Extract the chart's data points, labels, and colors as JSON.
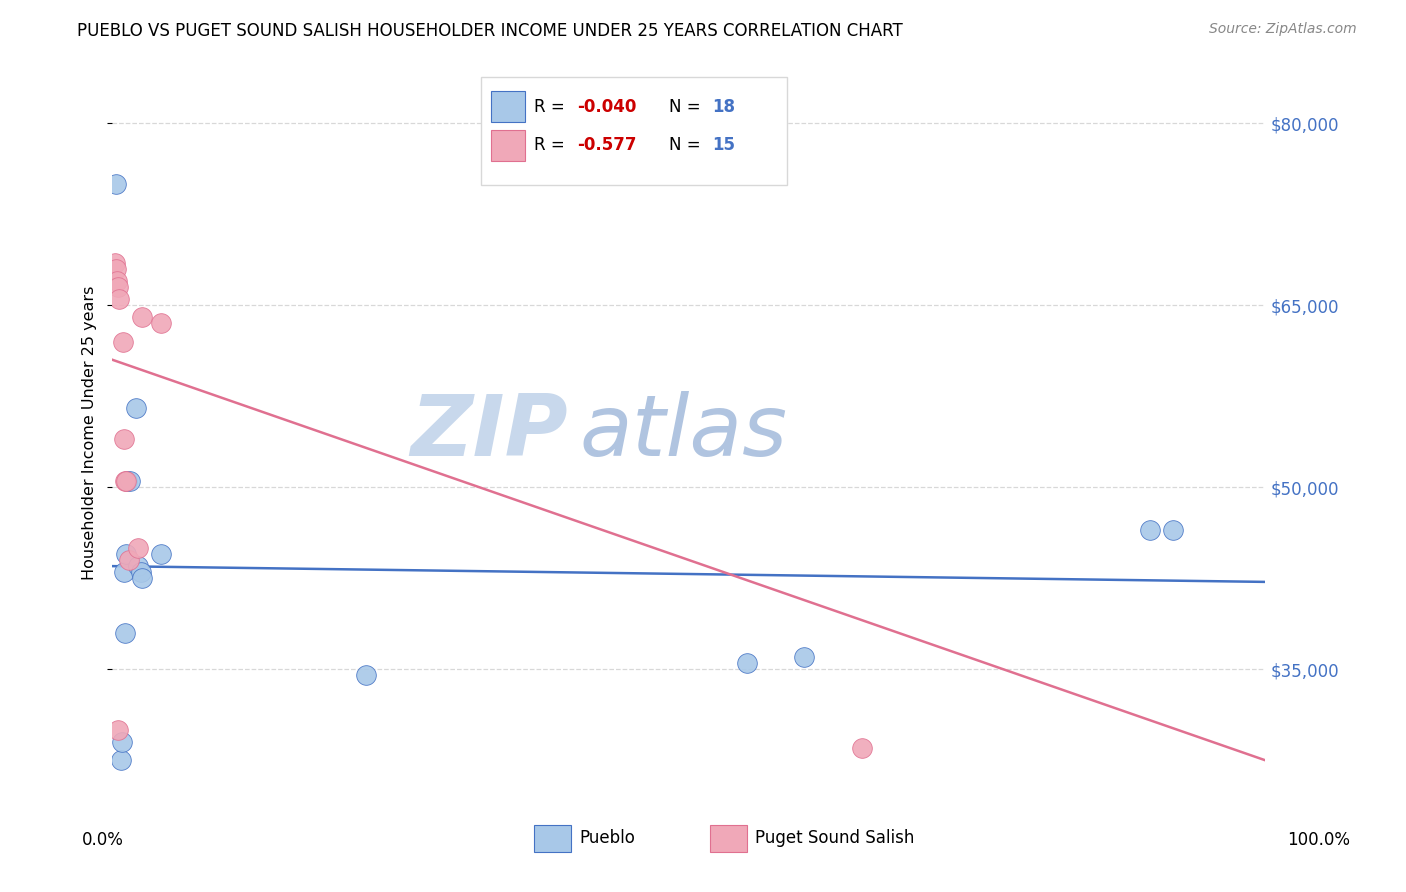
{
  "title": "PUEBLO VS PUGET SOUND SALISH HOUSEHOLDER INCOME UNDER 25 YEARS CORRELATION CHART",
  "source": "Source: ZipAtlas.com",
  "ylabel": "Householder Income Under 25 years",
  "pueblo_color": "#a8c8e8",
  "puget_color": "#f0a8b8",
  "pueblo_line_color": "#4472c4",
  "puget_line_color": "#e07090",
  "r_value_color": "#cc0000",
  "n_value_color": "#4472c4",
  "watermark_zip_color": "#c8d8ec",
  "watermark_atlas_color": "#b0c4e0",
  "background_color": "#ffffff",
  "grid_color": "#d8d8d8",
  "xlim": [
    0,
    1.0
  ],
  "ylim": [
    24000,
    85000
  ],
  "ytick_positions": [
    35000,
    50000,
    65000,
    80000
  ],
  "ytick_labels": [
    "$35,000",
    "$50,000",
    "$65,000",
    "$80,000"
  ],
  "pueblo_x": [
    0.003,
    0.007,
    0.008,
    0.01,
    0.011,
    0.012,
    0.013,
    0.015,
    0.02,
    0.022,
    0.025,
    0.026,
    0.042,
    0.55,
    0.6,
    0.9,
    0.92,
    0.22
  ],
  "pueblo_y": [
    75000,
    27500,
    29000,
    43000,
    38000,
    44500,
    50500,
    50500,
    56500,
    43500,
    43000,
    42500,
    44500,
    35500,
    36000,
    46500,
    46500,
    34500
  ],
  "puget_x": [
    0.002,
    0.003,
    0.004,
    0.005,
    0.006,
    0.009,
    0.01,
    0.011,
    0.012,
    0.014,
    0.022,
    0.026,
    0.042,
    0.65,
    0.005
  ],
  "puget_y": [
    68500,
    68000,
    67000,
    66500,
    65500,
    62000,
    54000,
    50500,
    50500,
    44000,
    45000,
    64000,
    63500,
    28500,
    30000
  ],
  "pueblo_trendline_x": [
    0.0,
    1.0
  ],
  "pueblo_trendline_y": [
    43500,
    42200
  ],
  "puget_trendline_x": [
    0.0,
    1.0
  ],
  "puget_trendline_y": [
    60500,
    27500
  ]
}
